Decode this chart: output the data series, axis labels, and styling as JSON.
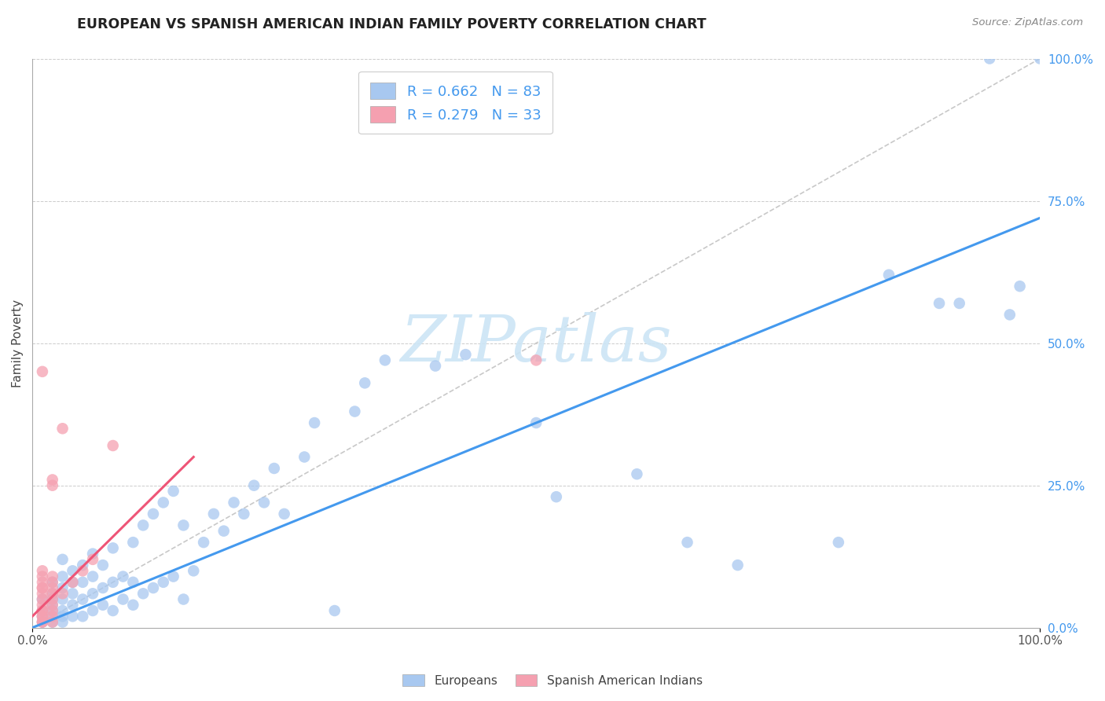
{
  "title": "EUROPEAN VS SPANISH AMERICAN INDIAN FAMILY POVERTY CORRELATION CHART",
  "source": "Source: ZipAtlas.com",
  "ylabel": "Family Poverty",
  "ytick_labels": [
    "0.0%",
    "25.0%",
    "50.0%",
    "75.0%",
    "100.0%"
  ],
  "ytick_values": [
    0.0,
    0.25,
    0.5,
    0.75,
    1.0
  ],
  "xtick_labels": [
    "0.0%",
    "100.0%"
  ],
  "xtick_values": [
    0.0,
    1.0
  ],
  "blue_color": "#a8c8f0",
  "pink_color": "#f5a0b0",
  "blue_line_color": "#4499ee",
  "pink_line_color": "#ee5577",
  "diag_color": "#bbbbbb",
  "grid_color": "#cccccc",
  "watermark_text": "ZIPatlas",
  "watermark_color": "#cce5f5",
  "blue_R": 0.662,
  "blue_N": 83,
  "pink_R": 0.279,
  "pink_N": 33,
  "blue_line_x0": 0.0,
  "blue_line_x1": 1.0,
  "blue_line_y0": 0.0,
  "blue_line_y1": 0.72,
  "pink_line_x0": 0.0,
  "pink_line_x1": 0.16,
  "pink_line_y0": 0.02,
  "pink_line_y1": 0.3,
  "blue_scatter_x": [
    0.01,
    0.01,
    0.01,
    0.01,
    0.02,
    0.02,
    0.02,
    0.02,
    0.02,
    0.02,
    0.02,
    0.03,
    0.03,
    0.03,
    0.03,
    0.03,
    0.03,
    0.03,
    0.04,
    0.04,
    0.04,
    0.04,
    0.04,
    0.05,
    0.05,
    0.05,
    0.05,
    0.06,
    0.06,
    0.06,
    0.06,
    0.07,
    0.07,
    0.07,
    0.08,
    0.08,
    0.08,
    0.09,
    0.09,
    0.1,
    0.1,
    0.1,
    0.11,
    0.11,
    0.12,
    0.12,
    0.13,
    0.13,
    0.14,
    0.14,
    0.15,
    0.15,
    0.16,
    0.17,
    0.18,
    0.19,
    0.2,
    0.21,
    0.22,
    0.23,
    0.24,
    0.25,
    0.27,
    0.28,
    0.3,
    0.32,
    0.33,
    0.35,
    0.4,
    0.43,
    0.5,
    0.52,
    0.6,
    0.65,
    0.7,
    0.8,
    0.85,
    0.9,
    0.92,
    0.95,
    0.97,
    0.98,
    1.0
  ],
  "blue_scatter_y": [
    0.01,
    0.02,
    0.03,
    0.05,
    0.01,
    0.02,
    0.03,
    0.04,
    0.05,
    0.06,
    0.08,
    0.01,
    0.02,
    0.03,
    0.05,
    0.07,
    0.09,
    0.12,
    0.02,
    0.04,
    0.06,
    0.08,
    0.1,
    0.02,
    0.05,
    0.08,
    0.11,
    0.03,
    0.06,
    0.09,
    0.13,
    0.04,
    0.07,
    0.11,
    0.03,
    0.08,
    0.14,
    0.05,
    0.09,
    0.04,
    0.08,
    0.15,
    0.06,
    0.18,
    0.07,
    0.2,
    0.08,
    0.22,
    0.09,
    0.24,
    0.05,
    0.18,
    0.1,
    0.15,
    0.2,
    0.17,
    0.22,
    0.2,
    0.25,
    0.22,
    0.28,
    0.2,
    0.3,
    0.36,
    0.03,
    0.38,
    0.43,
    0.47,
    0.46,
    0.48,
    0.36,
    0.23,
    0.27,
    0.15,
    0.11,
    0.15,
    0.62,
    0.57,
    0.57,
    1.0,
    0.55,
    0.6,
    1.0
  ],
  "pink_scatter_x": [
    0.01,
    0.01,
    0.01,
    0.01,
    0.01,
    0.01,
    0.01,
    0.01,
    0.01,
    0.01,
    0.01,
    0.01,
    0.01,
    0.01,
    0.01,
    0.02,
    0.02,
    0.02,
    0.02,
    0.02,
    0.02,
    0.02,
    0.02,
    0.02,
    0.02,
    0.02,
    0.03,
    0.03,
    0.04,
    0.05,
    0.06,
    0.08,
    0.5
  ],
  "pink_scatter_y": [
    0.01,
    0.01,
    0.02,
    0.02,
    0.03,
    0.03,
    0.04,
    0.05,
    0.06,
    0.07,
    0.07,
    0.08,
    0.09,
    0.1,
    0.45,
    0.01,
    0.02,
    0.03,
    0.04,
    0.05,
    0.06,
    0.07,
    0.08,
    0.09,
    0.25,
    0.26,
    0.06,
    0.35,
    0.08,
    0.1,
    0.12,
    0.32,
    0.47
  ],
  "xlim": [
    0.0,
    1.0
  ],
  "ylim": [
    0.0,
    1.0
  ]
}
